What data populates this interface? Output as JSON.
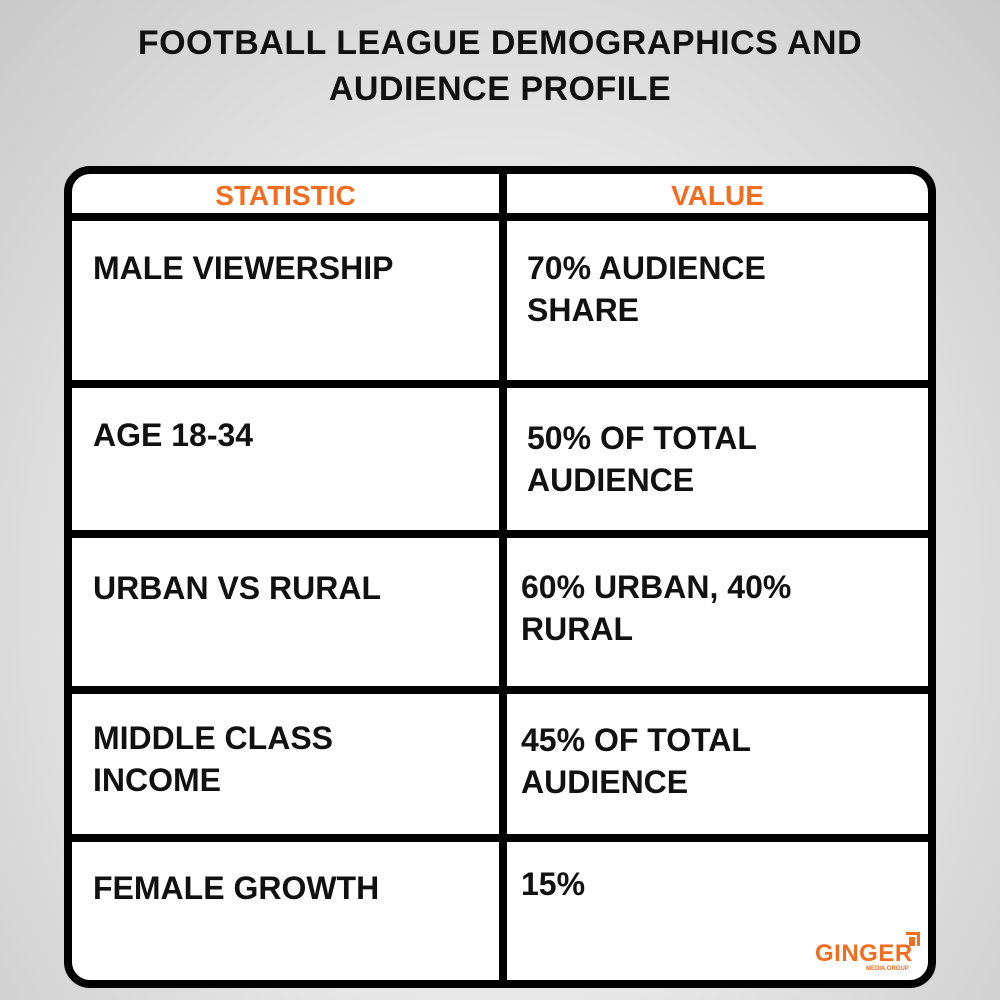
{
  "title": [
    "FOOTBALL LEAGUE DEMOGRAPHICS AND",
    "AUDIENCE PROFILE"
  ],
  "table": {
    "headers": [
      "STATISTIC",
      "VALUE"
    ],
    "rows": [
      {
        "statistic": [
          "MALE VIEWERSHIP"
        ],
        "value": [
          "70% AUDIENCE",
          "SHARE"
        ]
      },
      {
        "statistic": [
          "AGE 18-34"
        ],
        "value": [
          "50% OF TOTAL",
          "AUDIENCE"
        ]
      },
      {
        "statistic": [
          "URBAN VS RURAL"
        ],
        "value": [
          "60% URBAN, 40%",
          "RURAL"
        ]
      },
      {
        "statistic": [
          "MIDDLE CLASS",
          "INCOME"
        ],
        "value": [
          "45% OF TOTAL",
          "AUDIENCE"
        ]
      },
      {
        "statistic": [
          "FEMALE GROWTH"
        ],
        "value": [
          "15%"
        ]
      }
    ]
  },
  "logo": {
    "name": "GINGER",
    "tagline": "MEDIA GROUP"
  },
  "colors": {
    "accent": "#f26d1f",
    "border": "#000000"
  }
}
